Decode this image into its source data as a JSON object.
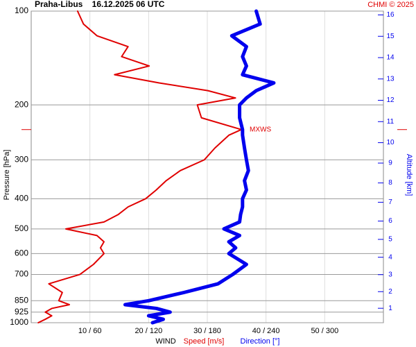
{
  "chart_data": {
    "type": "line",
    "title": "Praha-Libus    16.12.2025 06 UTC",
    "credit": "CHMI © 2025",
    "ylabel": "Pressure [hPa]",
    "y2label": "Altitude [km]",
    "xlabel": "WIND",
    "xlabel_speed": "Speed [m/s]",
    "xlabel_direction": "Direction [°]",
    "annotation": "MXWS",
    "annotation_pressure": 240,
    "log_y": true,
    "grid": true,
    "ylim": [
      1000,
      100
    ],
    "yticks": [
      100,
      200,
      300,
      400,
      500,
      600,
      700,
      850,
      925,
      1000
    ],
    "y2ticks": [
      1,
      2,
      3,
      4,
      5,
      6,
      7,
      8,
      9,
      10,
      11,
      12,
      13,
      14,
      15,
      16
    ],
    "xlim": [
      0,
      60
    ],
    "x2lim": [
      0,
      360
    ],
    "xticks": [
      {
        "value": 10,
        "label": "10 / 60"
      },
      {
        "value": 20,
        "label": "20 / 120"
      },
      {
        "value": 30,
        "label": "30 / 180"
      },
      {
        "value": 40,
        "label": "40 / 240"
      },
      {
        "value": 50,
        "label": "50 / 300"
      }
    ],
    "pressure": [
      100,
      110,
      120,
      130,
      140,
      150,
      160,
      170,
      180,
      190,
      200,
      220,
      240,
      250,
      275,
      300,
      325,
      350,
      375,
      400,
      425,
      450,
      475,
      500,
      525,
      550,
      575,
      600,
      650,
      700,
      750,
      800,
      850,
      875,
      900,
      925,
      950,
      975,
      1000
    ],
    "series": [
      {
        "name": "Speed [m/s]",
        "color": "#e00000",
        "axis": "x",
        "values": [
          7.9,
          8.9,
          11.2,
          16.5,
          15.4,
          20.1,
          14.2,
          21.8,
          30.1,
          34.8,
          28.3,
          29,
          35.8,
          33.7,
          31.3,
          29.5,
          25.4,
          23,
          21.3,
          19.5,
          16.5,
          14.8,
          12.4,
          5.9,
          11.2,
          12.4,
          11.8,
          12.4,
          10.6,
          8.3,
          3,
          5.3,
          4.7,
          6.5,
          3.5,
          2.4,
          3.5,
          2.4,
          1.2
        ]
      },
      {
        "name": "Direction [°]",
        "color": "#0000ee",
        "axis": "x2",
        "values": [
          230,
          234,
          205,
          220,
          216,
          220,
          216,
          248,
          230,
          220,
          213,
          213,
          216,
          216,
          218,
          220,
          222,
          218,
          220,
          216,
          216,
          214,
          213,
          197,
          213,
          202,
          209,
          202,
          220,
          206,
          191,
          156,
          120,
          96,
          128,
          142,
          120,
          135,
          124
        ]
      }
    ]
  }
}
